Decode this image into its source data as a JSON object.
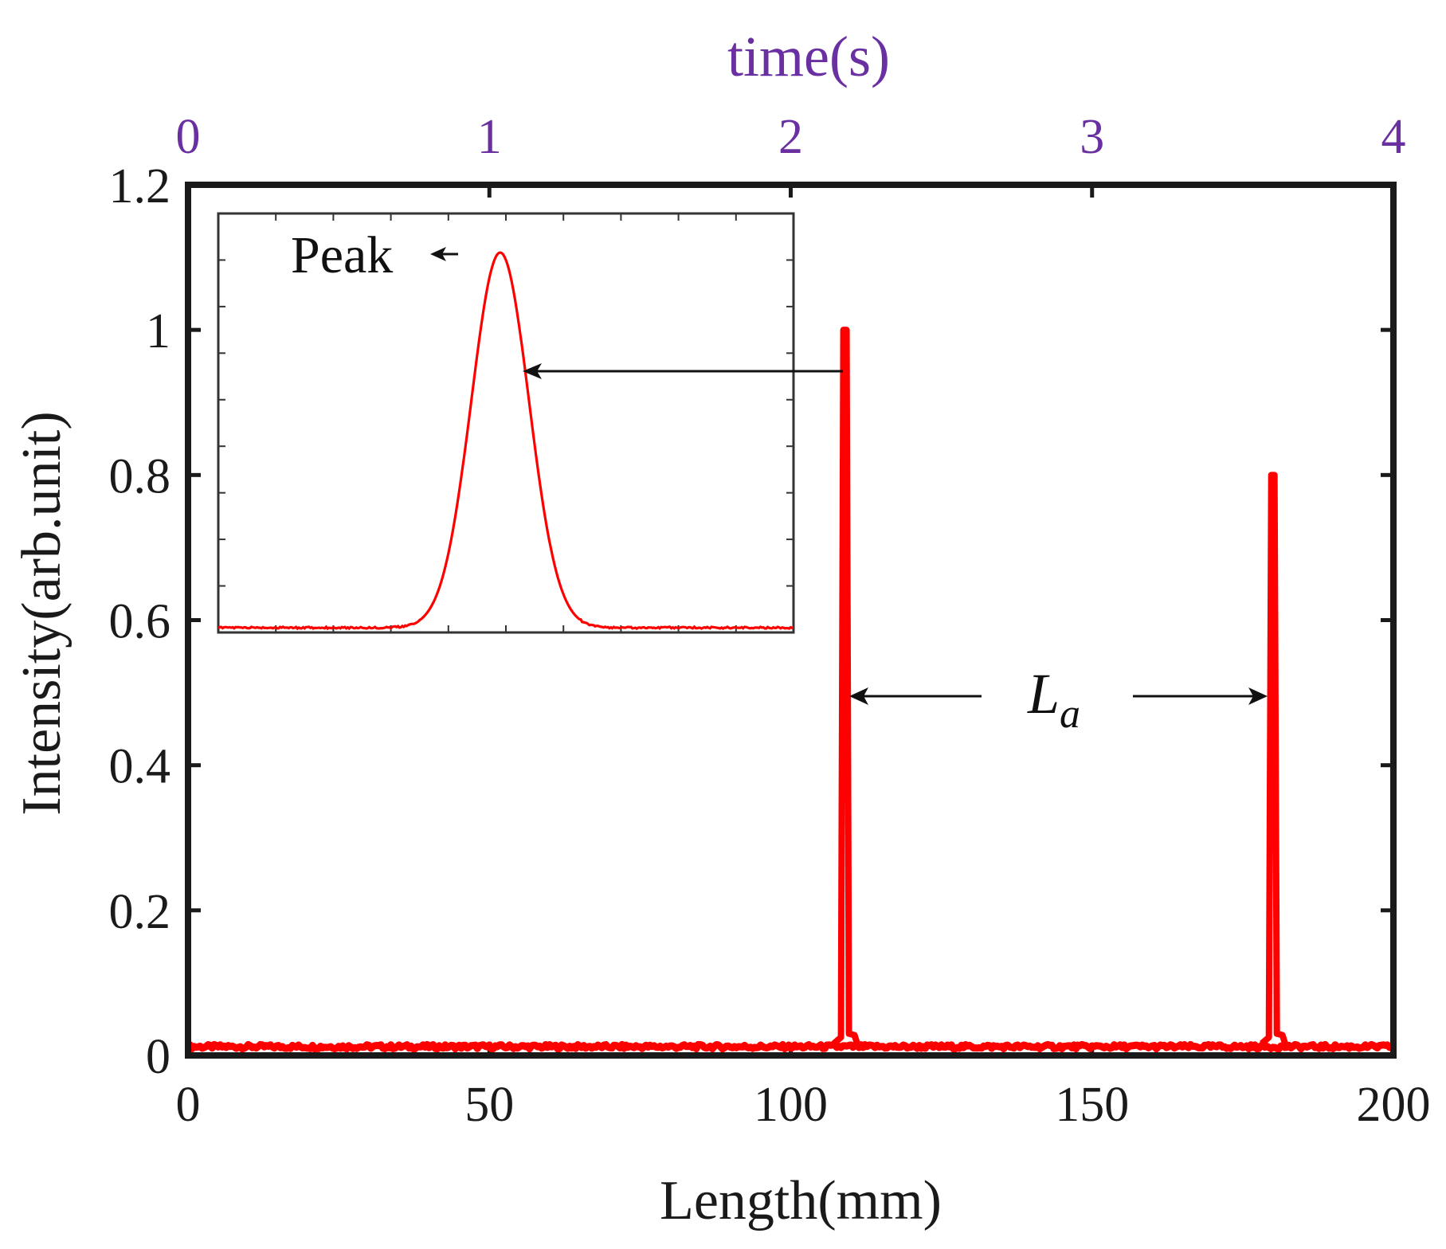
{
  "colors": {
    "series": "#ff0000",
    "top_axis": "#6a2fa0",
    "axis": "#1a1a1a",
    "background": "#ffffff"
  },
  "chart_data": {
    "type": "line",
    "xlabel": "Length(mm)",
    "ylabel": "Intensity(arb.unit)",
    "x2label": "time(s)",
    "xlim": [
      0,
      200
    ],
    "ylim": [
      0,
      1.2
    ],
    "x2lim": [
      0,
      4
    ],
    "xticks": [
      "0",
      "50",
      "100",
      "150",
      "200"
    ],
    "yticks": [
      "0",
      "0.2",
      "0.4",
      "0.6",
      "0.8",
      "1",
      "1.2"
    ],
    "x2ticks": [
      "0",
      "1",
      "2",
      "3",
      "4"
    ],
    "baseline": 0.012,
    "series": [
      {
        "name": "Intensity",
        "peaks": [
          {
            "x": 109,
            "y": 1.0
          },
          {
            "x": 180,
            "y": 0.8
          }
        ]
      }
    ],
    "annotations": {
      "distance_label_base": "L",
      "distance_label_sub": "a",
      "distance_y": 0.49,
      "inset_label": "Peak"
    },
    "inset": {
      "type": "line",
      "description_label": "Peak",
      "peak_position": 0.49,
      "peak_height": 1.0,
      "peak_width": 0.05
    }
  }
}
